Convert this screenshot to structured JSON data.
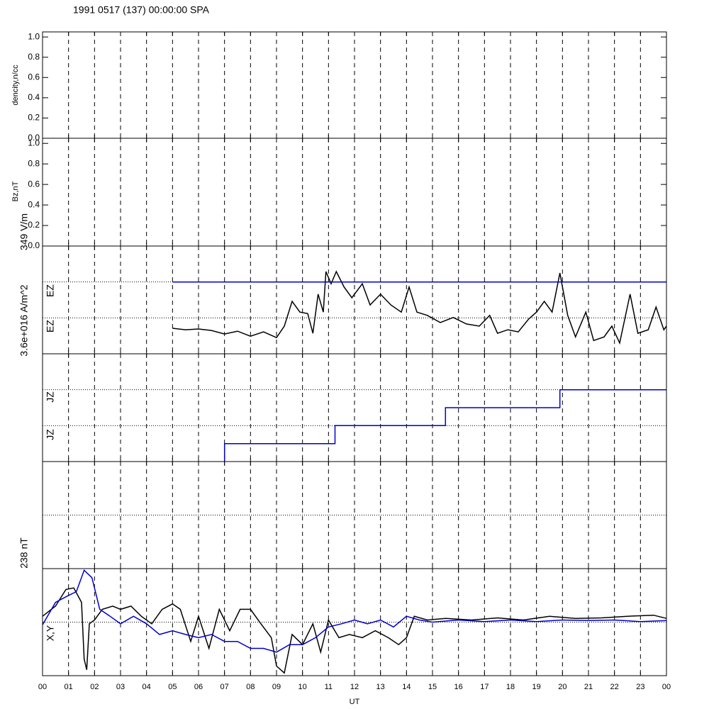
{
  "chart_data": [
    {
      "type": "line",
      "title": "1991 0517 (137) 00:00:00 SPA",
      "ylabel": "dencity,n/cc",
      "ylim": [
        0,
        1.05
      ],
      "yticks": [
        {
          "value": 0,
          "label": "0.0"
        },
        {
          "value": 0.2,
          "label": "0.2"
        },
        {
          "value": 0.4,
          "label": "0.4"
        },
        {
          "value": 0.6,
          "label": "0.6"
        },
        {
          "value": 0.8,
          "label": "0.8"
        },
        {
          "value": 1,
          "label": "1.0"
        }
      ],
      "series": []
    },
    {
      "type": "line",
      "ylabel": "Bz,nT",
      "ylim": [
        0,
        1.05
      ],
      "yticks": [
        {
          "value": 0,
          "label": "0.0"
        },
        {
          "value": 0.2,
          "label": "0.2"
        },
        {
          "value": 0.4,
          "label": "0.4"
        },
        {
          "value": 0.6,
          "label": "0.6"
        },
        {
          "value": 0.8,
          "label": "0.8"
        },
        {
          "value": 1,
          "label": "1.0"
        }
      ],
      "series": []
    },
    {
      "type": "line",
      "scale_label": "349 V/m",
      "labels": [
        "EZ",
        "EZ"
      ],
      "ylim": [
        0,
        3
      ],
      "ref_lines": [
        1,
        2
      ],
      "series": [
        {
          "color": "#000000",
          "x": [
            5,
            5.5,
            6,
            6.5,
            7,
            7.5,
            8,
            8.5,
            9,
            9.3,
            9.6,
            9.9,
            10.2,
            10.4,
            10.6,
            10.8,
            10.9,
            11.1,
            11.3,
            11.6,
            11.9,
            12.3,
            12.6,
            13,
            13.4,
            13.8,
            14.1,
            14.4,
            14.8,
            15.3,
            15.8,
            16.3,
            16.8,
            17.2,
            17.5,
            17.9,
            18.3,
            18.7,
            19,
            19.3,
            19.6,
            19.9,
            20.2,
            20.5,
            20.9,
            21.2,
            21.6,
            21.9,
            22.2,
            22.6,
            22.9,
            23.3,
            23.6,
            23.9,
            24
          ],
          "values": [
            0.71,
            0.67,
            0.69,
            0.65,
            0.55,
            0.63,
            0.49,
            0.61,
            0.45,
            0.77,
            1.46,
            1.16,
            1.12,
            0.57,
            1.66,
            1.16,
            2.29,
            1.95,
            2.29,
            1.86,
            1.56,
            1.95,
            1.36,
            1.66,
            1.36,
            1.16,
            1.86,
            1.16,
            1.07,
            0.87,
            1.01,
            0.83,
            0.77,
            1.07,
            0.57,
            0.67,
            0.61,
            0.97,
            1.16,
            1.46,
            1.16,
            2.25,
            1.07,
            0.47,
            1.16,
            0.37,
            0.47,
            0.77,
            0.3,
            1.66,
            0.57,
            0.67,
            1.3,
            0.67,
            0.77
          ]
        },
        {
          "color": "#0000cc",
          "x": [
            5,
            24
          ],
          "values": [
            2,
            2
          ]
        }
      ]
    },
    {
      "type": "line",
      "scale_label": "3.6e+016 A/m^2",
      "labels": [
        "JZ",
        "JZ"
      ],
      "ylim": [
        0,
        3
      ],
      "ref_lines": [
        1,
        2
      ],
      "series": [
        {
          "color": "#0000cc",
          "x": [
            7,
            7,
            11.25,
            11.25,
            15.5,
            15.5,
            19.9,
            19.9,
            24
          ],
          "values": [
            0,
            0.5,
            0.5,
            1,
            1,
            1.5,
            1.5,
            2,
            2
          ]
        }
      ]
    },
    {
      "type": "line",
      "ylim": [
        0,
        2
      ],
      "ref_lines": [
        1
      ],
      "series": []
    },
    {
      "type": "line",
      "scale_label": "238 nT",
      "labels": [
        "X,Y"
      ],
      "ylim": [
        -1,
        1
      ],
      "ref_lines": [
        0
      ],
      "xlabel": "UT",
      "xlim": [
        0,
        24
      ],
      "xticks": [
        {
          "value": 0,
          "label": "00"
        },
        {
          "value": 1,
          "label": "01"
        },
        {
          "value": 2,
          "label": "02"
        },
        {
          "value": 3,
          "label": "03"
        },
        {
          "value": 4,
          "label": "04"
        },
        {
          "value": 5,
          "label": "05"
        },
        {
          "value": 6,
          "label": "06"
        },
        {
          "value": 7,
          "label": "07"
        },
        {
          "value": 8,
          "label": "08"
        },
        {
          "value": 9,
          "label": "09"
        },
        10,
        11,
        12,
        13,
        14,
        15,
        16,
        17,
        18,
        19,
        20,
        21,
        22,
        23,
        {
          "value": 24,
          "label": "00"
        }
      ],
      "series": [
        {
          "color": "#000000",
          "x": [
            0,
            0.5,
            0.9,
            1.2,
            1.5,
            1.6,
            1.7,
            1.8,
            2,
            2.3,
            2.7,
            3,
            3.4,
            3.8,
            4.2,
            4.6,
            5,
            5.3,
            5.7,
            6,
            6.4,
            6.8,
            7.2,
            7.6,
            8,
            8.4,
            8.8,
            9,
            9.3,
            9.6,
            10,
            10.4,
            10.7,
            11,
            11.4,
            11.8,
            12.3,
            12.8,
            13.3,
            13.7,
            14,
            14.3,
            14.8,
            15.5,
            16.5,
            17.5,
            18.5,
            19.5,
            20.5,
            21.5,
            22.5,
            23.5,
            24
          ],
          "values": [
            0.11,
            0.3,
            0.61,
            0.64,
            0.37,
            -0.69,
            -0.89,
            -0.03,
            0.04,
            0.24,
            0.3,
            0.24,
            0.3,
            0.11,
            -0.03,
            0.24,
            0.34,
            0.24,
            -0.36,
            0.11,
            -0.49,
            0.24,
            -0.16,
            0.24,
            0.24,
            -0.03,
            -0.29,
            -0.82,
            -0.95,
            -0.23,
            -0.42,
            -0.03,
            -0.56,
            0.04,
            -0.29,
            -0.23,
            -0.29,
            -0.16,
            -0.29,
            -0.42,
            -0.29,
            0.11,
            0.04,
            0.07,
            0.04,
            0.08,
            0.04,
            0.11,
            0.07,
            0.08,
            0.11,
            0.13,
            0.07
          ]
        },
        {
          "color": "#0000cc",
          "x": [
            0,
            0.5,
            1,
            1.3,
            1.6,
            1.9,
            2.2,
            2.6,
            3,
            3.5,
            4,
            4.5,
            5,
            5.5,
            6,
            6.5,
            7,
            7.5,
            8,
            8.5,
            9,
            9.5,
            10,
            10.5,
            11,
            11.5,
            12,
            12.5,
            13,
            13.5,
            14,
            14.5,
            15,
            16,
            17,
            18,
            19,
            20,
            21,
            22,
            23,
            24
          ],
          "values": [
            -0.05,
            0.37,
            0.5,
            0.57,
            0.97,
            0.83,
            0.24,
            0.11,
            -0.03,
            0.11,
            -0.03,
            -0.23,
            -0.16,
            -0.23,
            -0.29,
            -0.23,
            -0.36,
            -0.36,
            -0.49,
            -0.49,
            -0.56,
            -0.42,
            -0.42,
            -0.29,
            -0.09,
            -0.03,
            0.04,
            -0.03,
            0.04,
            -0.09,
            0.11,
            0.04,
            0,
            0.04,
            0.01,
            0.04,
            0.01,
            0.04,
            0.03,
            0.04,
            0.01,
            0.03
          ]
        }
      ]
    }
  ]
}
